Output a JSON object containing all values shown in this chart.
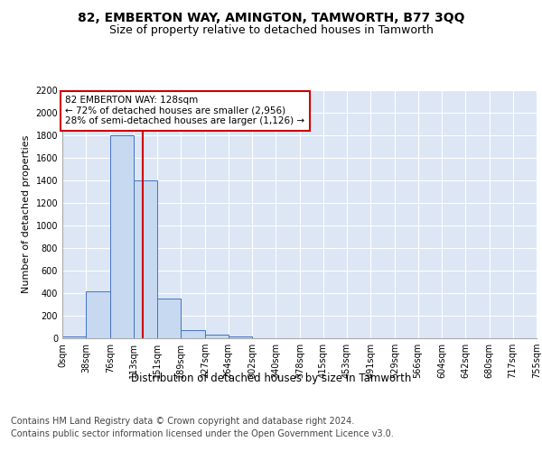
{
  "title": "82, EMBERTON WAY, AMINGTON, TAMWORTH, B77 3QQ",
  "subtitle": "Size of property relative to detached houses in Tamworth",
  "xlabel": "Distribution of detached houses by size in Tamworth",
  "ylabel": "Number of detached properties",
  "bar_edges": [
    0,
    38,
    76,
    113,
    151,
    189,
    227,
    264,
    302,
    340,
    378,
    415,
    453,
    491,
    529,
    566,
    604,
    642,
    680,
    717,
    755
  ],
  "bar_heights": [
    15,
    420,
    1800,
    1400,
    350,
    75,
    30,
    15,
    0,
    0,
    0,
    0,
    0,
    0,
    0,
    0,
    0,
    0,
    0,
    0
  ],
  "bar_color": "#c6d9f1",
  "bar_edge_color": "#4472c4",
  "vline_x": 128,
  "vline_color": "#cc0000",
  "annotation_text": "82 EMBERTON WAY: 128sqm\n← 72% of detached houses are smaller (2,956)\n28% of semi-detached houses are larger (1,126) →",
  "annotation_box_color": "#cc0000",
  "ylim": [
    0,
    2200
  ],
  "yticks": [
    0,
    200,
    400,
    600,
    800,
    1000,
    1200,
    1400,
    1600,
    1800,
    2000,
    2200
  ],
  "tick_labels": [
    "0sqm",
    "38sqm",
    "76sqm",
    "113sqm",
    "151sqm",
    "189sqm",
    "227sqm",
    "264sqm",
    "302sqm",
    "340sqm",
    "378sqm",
    "415sqm",
    "453sqm",
    "491sqm",
    "529sqm",
    "566sqm",
    "604sqm",
    "642sqm",
    "680sqm",
    "717sqm",
    "755sqm"
  ],
  "footer_line1": "Contains HM Land Registry data © Crown copyright and database right 2024.",
  "footer_line2": "Contains public sector information licensed under the Open Government Licence v3.0.",
  "fig_bg_color": "#ffffff",
  "plot_bg_color": "#dce6f5",
  "title_fontsize": 10,
  "subtitle_fontsize": 9,
  "xlabel_fontsize": 8.5,
  "ylabel_fontsize": 8,
  "footer_fontsize": 7,
  "tick_fontsize": 7,
  "annotation_fontsize": 7.5
}
